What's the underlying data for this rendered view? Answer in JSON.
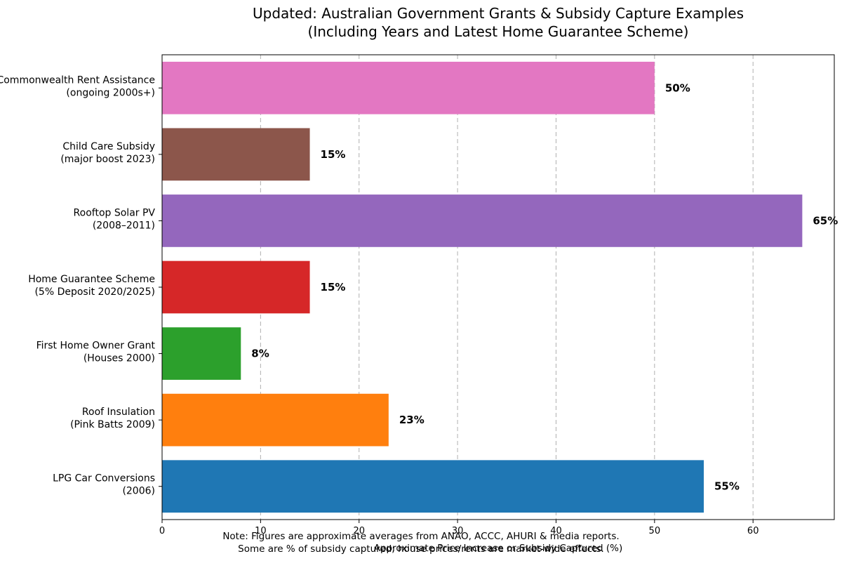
{
  "chart_data": {
    "type": "bar",
    "orientation": "horizontal",
    "title": [
      "Updated: Australian Government Grants & Subsidy Capture Examples",
      "(Including Years and Latest Home Guarantee Scheme)"
    ],
    "categories": [
      [
        "LPG Car Conversions",
        "(2006)"
      ],
      [
        "Roof Insulation",
        "(Pink Batts 2009)"
      ],
      [
        "First Home Owner Grant",
        "(Houses 2000)"
      ],
      [
        "Home Guarantee Scheme",
        "(5% Deposit 2020/2025)"
      ],
      [
        "Rooftop Solar PV",
        "(2008–2011)"
      ],
      [
        "Child Care Subsidy",
        "(major boost 2023)"
      ],
      [
        "Commonwealth Rent Assistance",
        "(ongoing 2000s+)"
      ]
    ],
    "values": [
      55,
      23,
      8,
      15,
      65,
      15,
      50
    ],
    "value_labels": [
      "55%",
      "23%",
      "8%",
      "15%",
      "65%",
      "15%",
      "50%"
    ],
    "colors": [
      "#1f77b4",
      "#ff7f0e",
      "#2ca02c",
      "#d62728",
      "#9467bd",
      "#8c564b",
      "#e377c2"
    ],
    "xlabel": "Approximate Price Increase or Subsidy Captured (%)",
    "xticks": [
      0,
      10,
      20,
      30,
      40,
      50,
      60
    ],
    "xlim": [
      0,
      68.25
    ],
    "grid": "x-dashed",
    "note": [
      "Note: Figures are approximate averages from ANAO, ACCC, AHURI & media reports.",
      "Some are % of subsidy captured; house prices/rents are market-wide effects."
    ]
  }
}
